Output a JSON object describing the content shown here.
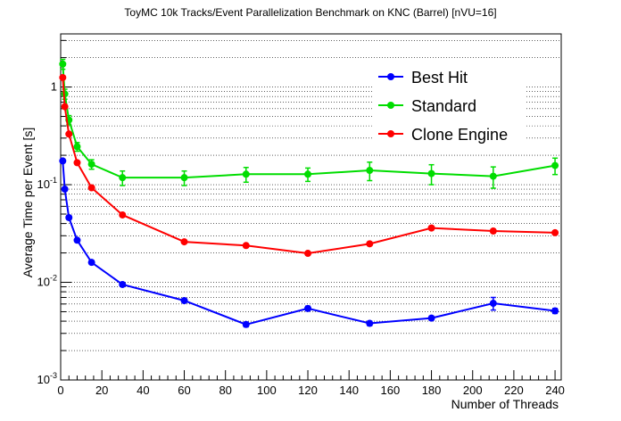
{
  "chart_data": {
    "type": "line",
    "title": "ToyMC 10k Tracks/Event Parallelization Benchmark on KNC (Barrel) [nVU=16]",
    "xlabel": "Number of Threads",
    "ylabel": "Average Time per Event [s]",
    "xlim": [
      0,
      243
    ],
    "ylim": [
      0.001,
      3.5
    ],
    "yscale": "log",
    "xticks": [
      0,
      20,
      40,
      60,
      80,
      100,
      120,
      140,
      160,
      180,
      200,
      220,
      240
    ],
    "yticks": [
      {
        "value": 0.001,
        "base": "10",
        "exp": "-3"
      },
      {
        "value": 0.01,
        "base": "10",
        "exp": "-2"
      },
      {
        "value": 0.1,
        "base": "10",
        "exp": "-1"
      },
      {
        "value": 1,
        "base": "1",
        "exp": ""
      }
    ],
    "grid": "horizontal-minor",
    "legend_position": "top-right",
    "series": [
      {
        "name": "Best Hit",
        "color": "#0000ff",
        "x": [
          1,
          2,
          4,
          8,
          15,
          30,
          60,
          90,
          120,
          150,
          180,
          210,
          240
        ],
        "y": [
          0.175,
          0.09,
          0.046,
          0.027,
          0.016,
          0.0095,
          0.0065,
          0.0037,
          0.0054,
          0.0038,
          0.0043,
          0.0061,
          0.0051
        ],
        "err": [
          0.004,
          0.003,
          0.002,
          0.001,
          0.0007,
          0.0004,
          0.0003,
          0.0002,
          0.0003,
          0.0002,
          0.0002,
          0.0009,
          0.0003
        ]
      },
      {
        "name": "Standard",
        "color": "#00dd00",
        "x": [
          1,
          2,
          4,
          8,
          15,
          30,
          60,
          90,
          120,
          150,
          180,
          210,
          240
        ],
        "y": [
          1.72,
          0.85,
          0.46,
          0.245,
          0.162,
          0.118,
          0.118,
          0.128,
          0.128,
          0.14,
          0.13,
          0.122,
          0.157
        ],
        "err": [
          0.2,
          0.1,
          0.05,
          0.025,
          0.018,
          0.02,
          0.02,
          0.022,
          0.02,
          0.03,
          0.03,
          0.03,
          0.03
        ]
      },
      {
        "name": "Clone Engine",
        "color": "#ff0000",
        "x": [
          1,
          2,
          4,
          8,
          15,
          30,
          60,
          90,
          120,
          150,
          180,
          210,
          240
        ],
        "y": [
          1.25,
          0.63,
          0.33,
          0.168,
          0.093,
          0.049,
          0.026,
          0.0238,
          0.0198,
          0.0248,
          0.036,
          0.0335,
          0.0322
        ],
        "err": [
          0.03,
          0.02,
          0.01,
          0.006,
          0.003,
          0.002,
          0.001,
          0.001,
          0.0008,
          0.001,
          0.0015,
          0.0014,
          0.0012
        ]
      }
    ]
  }
}
